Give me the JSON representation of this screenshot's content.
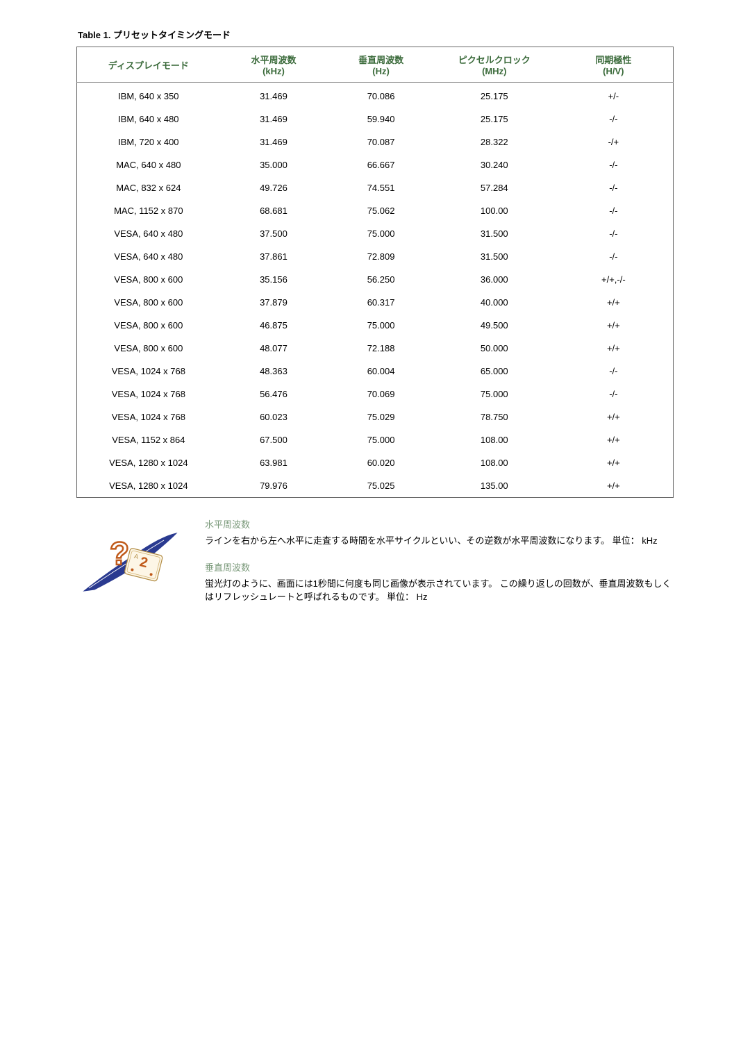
{
  "table": {
    "title": "Table 1. プリセットタイミングモード",
    "columns": [
      {
        "label": "ディスプレイモード",
        "unit": ""
      },
      {
        "label": "水平周波数",
        "unit": "(kHz)"
      },
      {
        "label": "垂直周波数",
        "unit": "(Hz)"
      },
      {
        "label": "ピクセルクロック",
        "unit": "(MHz)"
      },
      {
        "label": "同期極性",
        "unit": "(H/V)"
      }
    ],
    "rows": [
      [
        "IBM, 640 x 350",
        "31.469",
        "70.086",
        "25.175",
        "+/-"
      ],
      [
        "IBM, 640 x 480",
        "31.469",
        "59.940",
        "25.175",
        "-/-"
      ],
      [
        "IBM, 720 x 400",
        "31.469",
        "70.087",
        "28.322",
        "-/+"
      ],
      [
        "MAC, 640 x 480",
        "35.000",
        "66.667",
        "30.240",
        "-/-"
      ],
      [
        "MAC, 832 x 624",
        "49.726",
        "74.551",
        "57.284",
        "-/-"
      ],
      [
        "MAC, 1152 x 870",
        "68.681",
        "75.062",
        "100.00",
        "-/-"
      ],
      [
        "VESA, 640 x 480",
        "37.500",
        "75.000",
        "31.500",
        "-/-"
      ],
      [
        "VESA, 640 x 480",
        "37.861",
        "72.809",
        "31.500",
        "-/-"
      ],
      [
        "VESA, 800 x 600",
        "35.156",
        "56.250",
        "36.000",
        "+/+,-/-"
      ],
      [
        "VESA, 800 x 600",
        "37.879",
        "60.317",
        "40.000",
        "+/+"
      ],
      [
        "VESA, 800 x 600",
        "46.875",
        "75.000",
        "49.500",
        "+/+"
      ],
      [
        "VESA, 800 x 600",
        "48.077",
        "72.188",
        "50.000",
        "+/+"
      ],
      [
        "VESA, 1024 x 768",
        "48.363",
        "60.004",
        "65.000",
        "-/-"
      ],
      [
        "VESA, 1024 x 768",
        "56.476",
        "70.069",
        "75.000",
        "-/-"
      ],
      [
        "VESA, 1024 x 768",
        "60.023",
        "75.029",
        "78.750",
        "+/+"
      ],
      [
        "VESA, 1152 x 864",
        "67.500",
        "75.000",
        "108.00",
        "+/+"
      ],
      [
        "VESA, 1280 x 1024",
        "63.981",
        "60.020",
        "108.00",
        "+/+"
      ],
      [
        "VESA, 1280 x 1024",
        "79.976",
        "75.025",
        "135.00",
        "+/+"
      ]
    ]
  },
  "definitions": {
    "term1": "水平周波数",
    "desc1": "ラインを右から左へ水平に走査する時間を水平サイクルといい、その逆数が水平周波数になります。 単位： kHz",
    "term2": "垂直周波数",
    "desc2": "蛍光灯のように、画面には1秒間に何度も同じ画像が表示されています。 この繰り返しの回数が、垂直周波数もしくはリフレッシュレートと呼ばれるものです。 単位： Hz"
  }
}
